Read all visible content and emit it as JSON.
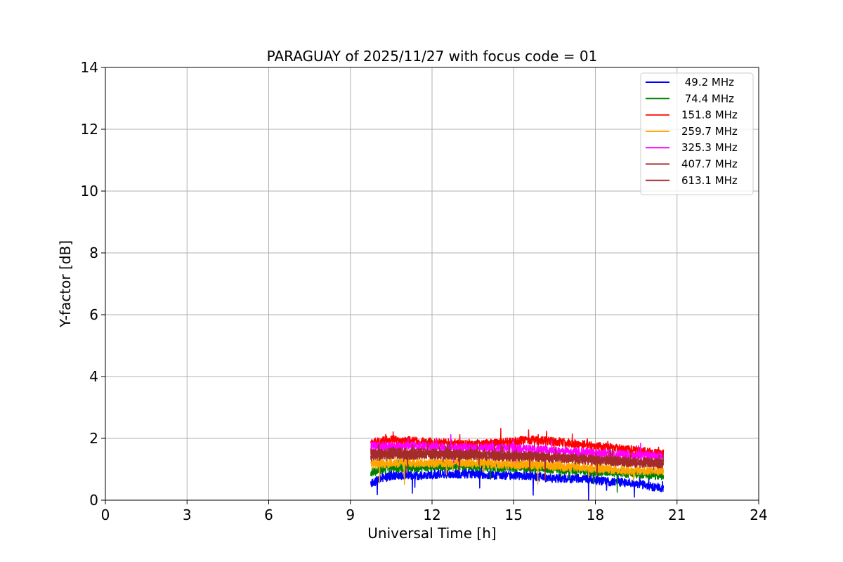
{
  "chart_data": {
    "type": "line",
    "title": "PARAGUAY of 2025/11/27 with focus code = 01",
    "xlabel": "Universal Time [h]",
    "ylabel": "Y-factor [dB]",
    "xlim": [
      0,
      24
    ],
    "ylim": [
      0,
      14
    ],
    "xticks": [
      "0",
      "3",
      "6",
      "9",
      "12",
      "15",
      "18",
      "21",
      "24"
    ],
    "yticks": [
      "0",
      "2",
      "4",
      "6",
      "8",
      "10",
      "12",
      "14"
    ],
    "grid": true,
    "legend_position": "top-right",
    "series": [
      {
        "name": " 49.2 MHz",
        "color": "#0000ff",
        "x": [
          9.75,
          10.5,
          11.5,
          12.5,
          13.5,
          14.5,
          15.5,
          16.5,
          17.5,
          18.5,
          19.5,
          20.0,
          20.5
        ],
        "y": [
          0.55,
          0.8,
          0.8,
          0.85,
          0.85,
          0.8,
          0.8,
          0.7,
          0.7,
          0.6,
          0.55,
          0.45,
          0.4
        ]
      },
      {
        "name": " 74.4 MHz",
        "color": "#008000",
        "x": [
          9.75,
          10.5,
          11.5,
          12.5,
          13.5,
          14.5,
          15.5,
          16.5,
          17.5,
          18.5,
          19.5,
          20.0,
          20.5
        ],
        "y": [
          0.9,
          1.05,
          1.05,
          1.1,
          1.1,
          1.05,
          1.05,
          1.0,
          0.95,
          0.9,
          0.85,
          0.8,
          0.8
        ]
      },
      {
        "name": "151.8 MHz",
        "color": "#ff0000",
        "x": [
          9.75,
          10.5,
          11.5,
          12.5,
          13.5,
          14.5,
          15.5,
          16.5,
          17.5,
          18.5,
          19.5,
          20.0,
          20.5
        ],
        "y": [
          1.85,
          1.95,
          1.9,
          1.85,
          1.8,
          1.85,
          1.95,
          1.9,
          1.8,
          1.7,
          1.6,
          1.55,
          1.5
        ]
      },
      {
        "name": "259.7 MHz",
        "color": "#ffa500",
        "x": [
          9.75,
          10.5,
          11.5,
          12.5,
          13.5,
          14.5,
          15.5,
          16.5,
          17.5,
          18.5,
          19.5,
          20.0,
          20.5
        ],
        "y": [
          1.15,
          1.2,
          1.2,
          1.2,
          1.2,
          1.15,
          1.15,
          1.1,
          1.05,
          1.0,
          0.95,
          0.95,
          0.95
        ]
      },
      {
        "name": "325.3 MHz",
        "color": "#ff00ff",
        "x": [
          9.75,
          10.5,
          11.5,
          12.5,
          13.5,
          14.5,
          15.5,
          16.5,
          17.5,
          18.5,
          19.5,
          20.0,
          20.5
        ],
        "y": [
          1.75,
          1.75,
          1.75,
          1.7,
          1.7,
          1.7,
          1.65,
          1.6,
          1.55,
          1.5,
          1.45,
          1.45,
          1.4
        ]
      },
      {
        "name": "407.7 MHz",
        "color": "#a52a2a",
        "x": [
          9.75,
          10.5,
          11.5,
          12.5,
          13.5,
          14.5,
          15.5,
          16.5,
          17.5,
          18.5,
          19.5,
          20.0,
          20.5
        ],
        "y": [
          1.4,
          1.45,
          1.45,
          1.45,
          1.45,
          1.4,
          1.4,
          1.35,
          1.3,
          1.25,
          1.2,
          1.2,
          1.15
        ]
      },
      {
        "name": "613.1 MHz",
        "color": "#a52a2a",
        "x": [
          9.75,
          10.5,
          11.5,
          12.5,
          13.5,
          14.5,
          15.5,
          16.5,
          17.5,
          18.5,
          19.5,
          20.0,
          20.5
        ],
        "y": [
          1.5,
          1.55,
          1.55,
          1.5,
          1.5,
          1.45,
          1.45,
          1.4,
          1.35,
          1.3,
          1.25,
          1.25,
          1.2
        ]
      }
    ]
  }
}
